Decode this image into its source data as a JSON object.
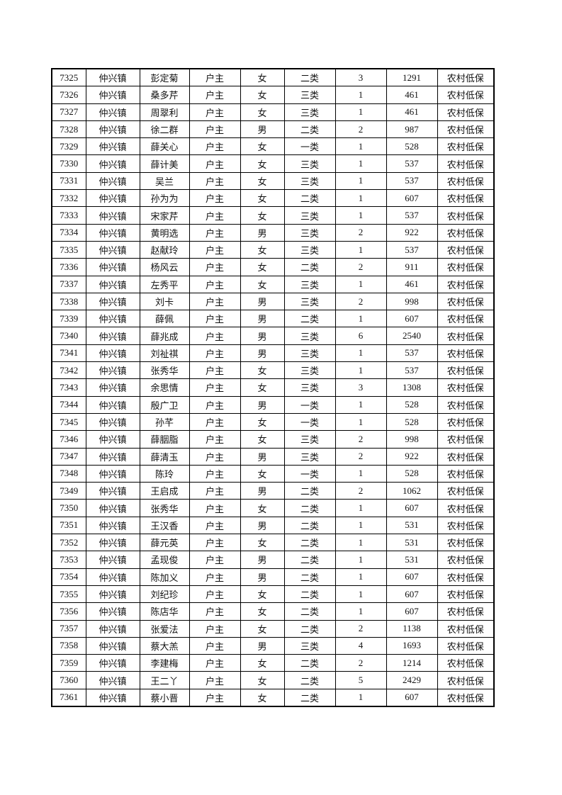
{
  "rows": [
    [
      "7325",
      "仲兴镇",
      "彭定菊",
      "户主",
      "女",
      "二类",
      "3",
      "1291",
      "农村低保"
    ],
    [
      "7326",
      "仲兴镇",
      "桑多芹",
      "户主",
      "女",
      "三类",
      "1",
      "461",
      "农村低保"
    ],
    [
      "7327",
      "仲兴镇",
      "周翠利",
      "户主",
      "女",
      "三类",
      "1",
      "461",
      "农村低保"
    ],
    [
      "7328",
      "仲兴镇",
      "徐二群",
      "户主",
      "男",
      "二类",
      "2",
      "987",
      "农村低保"
    ],
    [
      "7329",
      "仲兴镇",
      "薛关心",
      "户主",
      "女",
      "一类",
      "1",
      "528",
      "农村低保"
    ],
    [
      "7330",
      "仲兴镇",
      "薛计美",
      "户主",
      "女",
      "三类",
      "1",
      "537",
      "农村低保"
    ],
    [
      "7331",
      "仲兴镇",
      "吴兰",
      "户主",
      "女",
      "三类",
      "1",
      "537",
      "农村低保"
    ],
    [
      "7332",
      "仲兴镇",
      "孙为为",
      "户主",
      "女",
      "二类",
      "1",
      "607",
      "农村低保"
    ],
    [
      "7333",
      "仲兴镇",
      "宋家芹",
      "户主",
      "女",
      "三类",
      "1",
      "537",
      "农村低保"
    ],
    [
      "7334",
      "仲兴镇",
      "黄明选",
      "户主",
      "男",
      "三类",
      "2",
      "922",
      "农村低保"
    ],
    [
      "7335",
      "仲兴镇",
      "赵献玲",
      "户主",
      "女",
      "三类",
      "1",
      "537",
      "农村低保"
    ],
    [
      "7336",
      "仲兴镇",
      "杨风云",
      "户主",
      "女",
      "二类",
      "2",
      "911",
      "农村低保"
    ],
    [
      "7337",
      "仲兴镇",
      "左秀平",
      "户主",
      "女",
      "三类",
      "1",
      "461",
      "农村低保"
    ],
    [
      "7338",
      "仲兴镇",
      "刘卡",
      "户主",
      "男",
      "三类",
      "2",
      "998",
      "农村低保"
    ],
    [
      "7339",
      "仲兴镇",
      "薛佩",
      "户主",
      "男",
      "二类",
      "1",
      "607",
      "农村低保"
    ],
    [
      "7340",
      "仲兴镇",
      "薛兆成",
      "户主",
      "男",
      "三类",
      "6",
      "2540",
      "农村低保"
    ],
    [
      "7341",
      "仲兴镇",
      "刘祉祺",
      "户主",
      "男",
      "三类",
      "1",
      "537",
      "农村低保"
    ],
    [
      "7342",
      "仲兴镇",
      "张秀华",
      "户主",
      "女",
      "三类",
      "1",
      "537",
      "农村低保"
    ],
    [
      "7343",
      "仲兴镇",
      "余思情",
      "户主",
      "女",
      "三类",
      "3",
      "1308",
      "农村低保"
    ],
    [
      "7344",
      "仲兴镇",
      "殷广卫",
      "户主",
      "男",
      "一类",
      "1",
      "528",
      "农村低保"
    ],
    [
      "7345",
      "仲兴镇",
      "孙芊",
      "户主",
      "女",
      "一类",
      "1",
      "528",
      "农村低保"
    ],
    [
      "7346",
      "仲兴镇",
      "薛胭脂",
      "户主",
      "女",
      "三类",
      "2",
      "998",
      "农村低保"
    ],
    [
      "7347",
      "仲兴镇",
      "薛清玉",
      "户主",
      "男",
      "三类",
      "2",
      "922",
      "农村低保"
    ],
    [
      "7348",
      "仲兴镇",
      "陈玲",
      "户主",
      "女",
      "一类",
      "1",
      "528",
      "农村低保"
    ],
    [
      "7349",
      "仲兴镇",
      "王启成",
      "户主",
      "男",
      "二类",
      "2",
      "1062",
      "农村低保"
    ],
    [
      "7350",
      "仲兴镇",
      "张秀华",
      "户主",
      "女",
      "二类",
      "1",
      "607",
      "农村低保"
    ],
    [
      "7351",
      "仲兴镇",
      "王汉香",
      "户主",
      "男",
      "二类",
      "1",
      "531",
      "农村低保"
    ],
    [
      "7352",
      "仲兴镇",
      "薛元英",
      "户主",
      "女",
      "二类",
      "1",
      "531",
      "农村低保"
    ],
    [
      "7353",
      "仲兴镇",
      "孟现俊",
      "户主",
      "男",
      "二类",
      "1",
      "531",
      "农村低保"
    ],
    [
      "7354",
      "仲兴镇",
      "陈加义",
      "户主",
      "男",
      "二类",
      "1",
      "607",
      "农村低保"
    ],
    [
      "7355",
      "仲兴镇",
      "刘纪珍",
      "户主",
      "女",
      "二类",
      "1",
      "607",
      "农村低保"
    ],
    [
      "7356",
      "仲兴镇",
      "陈店华",
      "户主",
      "女",
      "二类",
      "1",
      "607",
      "农村低保"
    ],
    [
      "7357",
      "仲兴镇",
      "张爱法",
      "户主",
      "女",
      "二类",
      "2",
      "1138",
      "农村低保"
    ],
    [
      "7358",
      "仲兴镇",
      "蔡大羔",
      "户主",
      "男",
      "三类",
      "4",
      "1693",
      "农村低保"
    ],
    [
      "7359",
      "仲兴镇",
      "李建梅",
      "户主",
      "女",
      "二类",
      "2",
      "1214",
      "农村低保"
    ],
    [
      "7360",
      "仲兴镇",
      "王二丫",
      "户主",
      "女",
      "二类",
      "5",
      "2429",
      "农村低保"
    ],
    [
      "7361",
      "仲兴镇",
      "蔡小晋",
      "户主",
      "女",
      "二类",
      "1",
      "607",
      "农村低保"
    ]
  ]
}
